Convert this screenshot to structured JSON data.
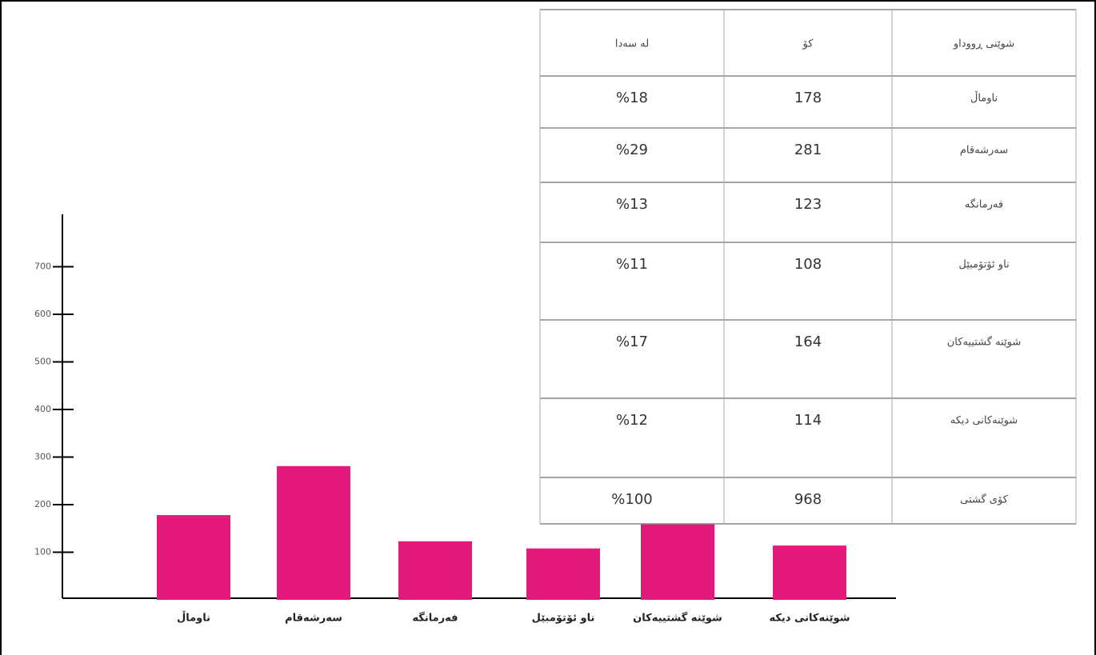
{
  "chart_data": {
    "type": "bar",
    "categories": [
      "ناوماڵ",
      "سەرشەقام",
      "فەرمانگە",
      "ناو ئۆتۆمبێل",
      "شوێنە گشتییەکان",
      "شوێنەکانی دیکە"
    ],
    "values": [
      178,
      281,
      123,
      108,
      164,
      114
    ],
    "color": "#e3197b",
    "ylim": [
      0,
      810
    ],
    "yticks": [
      100,
      200,
      300,
      400,
      500,
      600,
      700
    ],
    "grid": false
  },
  "table": {
    "headers": [
      "لە سەدا",
      "کۆ",
      "شوێنی ڕووداو"
    ],
    "percents": [
      "%18",
      "%29",
      "%13",
      "%11",
      "%17",
      "%12"
    ],
    "total": {
      "label": "کۆی گشتی",
      "count": "968",
      "percent": "%100"
    }
  }
}
